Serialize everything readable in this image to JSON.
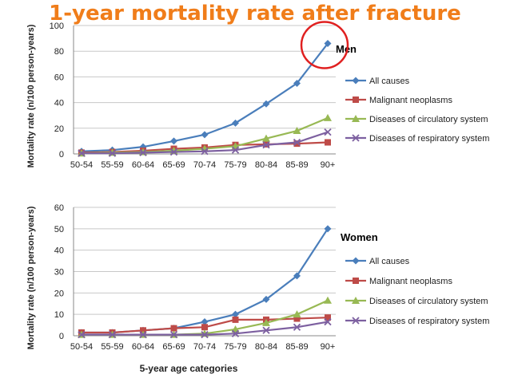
{
  "title": "1-year mortality rate after fracture",
  "chart_data": [
    {
      "type": "line",
      "panel_label": "Men",
      "ylabel": "Mortality rate (n/100 person-years)",
      "xlabel": "",
      "ylim": [
        0,
        100
      ],
      "yticks": [
        0,
        20,
        40,
        60,
        80,
        100
      ],
      "grid": true,
      "legend": "right",
      "categories": [
        "50-54",
        "55-59",
        "60-64",
        "65-69",
        "70-74",
        "75-79",
        "80-84",
        "85-89",
        "90+"
      ],
      "series": [
        {
          "name": "All causes",
          "color": "#4a7ebb",
          "marker": "diamond",
          "values": [
            2,
            3,
            5.5,
            10,
            15,
            24,
            39,
            55,
            86
          ]
        },
        {
          "name": "Malignant neoplasms",
          "color": "#be4b48",
          "marker": "square",
          "values": [
            1,
            1.5,
            2.5,
            4,
            5,
            7,
            7.5,
            8,
            9
          ]
        },
        {
          "name": "Diseases of circulatory system",
          "color": "#98b954",
          "marker": "triangle",
          "values": [
            0.5,
            1,
            1.5,
            2.5,
            4,
            6,
            12,
            18,
            28
          ]
        },
        {
          "name": "Diseases of respiratory system",
          "color": "#7d60a0",
          "marker": "x",
          "values": [
            0.5,
            0.5,
            1,
            1.5,
            2,
            3,
            7,
            9,
            17
          ]
        }
      ]
    },
    {
      "type": "line",
      "panel_label": "Women",
      "ylabel": "Mortality rate (n/100 person-years)",
      "xlabel": "5-year age categories",
      "ylim": [
        0,
        60
      ],
      "yticks": [
        0,
        10,
        20,
        30,
        40,
        50,
        60
      ],
      "grid": true,
      "legend": "right",
      "categories": [
        "50-54",
        "55-59",
        "60-64",
        "65-69",
        "70-74",
        "75-79",
        "80-84",
        "85-89",
        "90+"
      ],
      "series": [
        {
          "name": "All causes",
          "color": "#4a7ebb",
          "marker": "diamond",
          "values": [
            1.5,
            1.5,
            2.5,
            3.5,
            6.5,
            10,
            17,
            28,
            50
          ]
        },
        {
          "name": "Malignant neoplasms",
          "color": "#be4b48",
          "marker": "square",
          "values": [
            1.5,
            1.5,
            2.5,
            3.5,
            4,
            7.5,
            7.5,
            8,
            8.5
          ]
        },
        {
          "name": "Diseases of circulatory system",
          "color": "#98b954",
          "marker": "triangle",
          "values": [
            0.5,
            0.5,
            0.5,
            0.5,
            1,
            3,
            6,
            10,
            16.5
          ]
        },
        {
          "name": "Diseases of respiratory system",
          "color": "#7d60a0",
          "marker": "x",
          "values": [
            0.5,
            0.5,
            0.5,
            0.5,
            0.5,
            1,
            2.5,
            4,
            6.5
          ]
        }
      ]
    }
  ]
}
